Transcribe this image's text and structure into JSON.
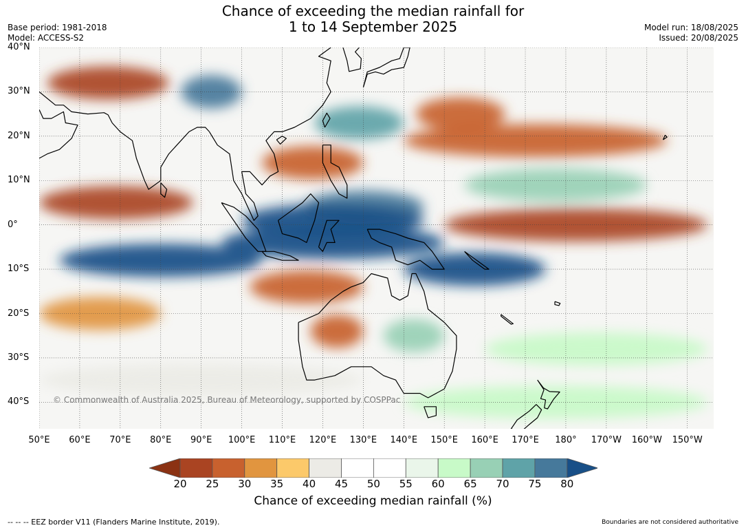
{
  "title": {
    "line1": "Chance of exceeding the median rainfall for",
    "line2": "1 to 14 September 2025"
  },
  "meta": {
    "base_period": "Base period: 1981-2018",
    "model": "Model: ACCESS-S2",
    "model_run": "Model run: 18/08/2025",
    "issued": "Issued: 20/08/2025"
  },
  "map": {
    "lat_labels": [
      "40°N",
      "30°N",
      "20°N",
      "10°N",
      "0°",
      "10°S",
      "20°S",
      "30°S",
      "40°S"
    ],
    "lon_labels": [
      "50°E",
      "60°E",
      "70°E",
      "80°E",
      "90°E",
      "100°E",
      "110°E",
      "120°E",
      "130°E",
      "140°E",
      "150°E",
      "160°E",
      "170°E",
      "180°",
      "170°W",
      "160°W",
      "150°W"
    ],
    "copyright": "© Commonwealth of Australia 2025, Bureau of Meteorology, supported by COSPPac",
    "bands": [
      {
        "lat": 32,
        "lon_from": 52,
        "lon_to": 82,
        "value": 22
      },
      {
        "lat": 30,
        "lon_from": 85,
        "lon_to": 100,
        "value": 78
      },
      {
        "lat": 25,
        "lon_from": 143,
        "lon_to": 165,
        "value": 25
      },
      {
        "lat": 23,
        "lon_from": 118,
        "lon_to": 140,
        "value": 72
      },
      {
        "lat": 19,
        "lon_from": 140,
        "lon_to": 205,
        "value": 25
      },
      {
        "lat": 14,
        "lon_from": 105,
        "lon_to": 130,
        "value": 25
      },
      {
        "lat": 9,
        "lon_from": 155,
        "lon_to": 200,
        "value": 65
      },
      {
        "lat": 5,
        "lon_from": 50,
        "lon_to": 88,
        "value": 22
      },
      {
        "lat": 4,
        "lon_from": 115,
        "lon_to": 145,
        "value": 78
      },
      {
        "lat": 1,
        "lon_from": 100,
        "lon_to": 145,
        "value": 80
      },
      {
        "lat": 0,
        "lon_from": 150,
        "lon_to": 215,
        "value": 22
      },
      {
        "lat": -4,
        "lon_from": 95,
        "lon_to": 150,
        "value": 80
      },
      {
        "lat": -8,
        "lon_from": 55,
        "lon_to": 105,
        "value": 80
      },
      {
        "lat": -10,
        "lon_from": 140,
        "lon_to": 175,
        "value": 80
      },
      {
        "lat": -14,
        "lon_from": 102,
        "lon_to": 130,
        "value": 25
      },
      {
        "lat": -20,
        "lon_from": 50,
        "lon_to": 80,
        "value": 32
      },
      {
        "lat": -24,
        "lon_from": 117,
        "lon_to": 130,
        "value": 25
      },
      {
        "lat": -25,
        "lon_from": 135,
        "lon_to": 150,
        "value": 68
      },
      {
        "lat": -28,
        "lon_from": 160,
        "lon_to": 215,
        "value": 60
      },
      {
        "lat": -35,
        "lon_from": 50,
        "lon_to": 130,
        "value": 40
      },
      {
        "lat": -40,
        "lon_from": 140,
        "lon_to": 215,
        "value": 62
      }
    ],
    "coastlines": [
      {
        "name": "australia",
        "points": [
          [
            114,
            -22
          ],
          [
            114,
            -26
          ],
          [
            115,
            -32
          ],
          [
            116,
            -35
          ],
          [
            118,
            -35
          ],
          [
            123,
            -34
          ],
          [
            127,
            -32
          ],
          [
            132,
            -32
          ],
          [
            135,
            -34
          ],
          [
            138,
            -35
          ],
          [
            140,
            -38
          ],
          [
            144,
            -38
          ],
          [
            146,
            -39
          ],
          [
            150,
            -37
          ],
          [
            152,
            -33
          ],
          [
            153,
            -28
          ],
          [
            153,
            -25
          ],
          [
            150,
            -22
          ],
          [
            146,
            -19
          ],
          [
            145,
            -15
          ],
          [
            143,
            -11
          ],
          [
            142,
            -11
          ],
          [
            141,
            -16
          ],
          [
            139,
            -17
          ],
          [
            137,
            -16
          ],
          [
            136,
            -12
          ],
          [
            132,
            -11
          ],
          [
            130,
            -13
          ],
          [
            127,
            -14
          ],
          [
            125,
            -15
          ],
          [
            122,
            -17
          ],
          [
            119,
            -20
          ],
          [
            114,
            -22
          ]
        ]
      },
      {
        "name": "tasmania",
        "points": [
          [
            145,
            -41
          ],
          [
            148,
            -41
          ],
          [
            148,
            -43
          ],
          [
            146,
            -43.5
          ],
          [
            145,
            -41
          ]
        ]
      },
      {
        "name": "new-guinea",
        "points": [
          [
            131,
            -1
          ],
          [
            134,
            -1
          ],
          [
            138,
            -2
          ],
          [
            141,
            -3
          ],
          [
            145,
            -4
          ],
          [
            147,
            -6
          ],
          [
            150,
            -10
          ],
          [
            147,
            -10
          ],
          [
            144,
            -8
          ],
          [
            141,
            -9
          ],
          [
            138,
            -8
          ],
          [
            137,
            -5
          ],
          [
            134,
            -4
          ],
          [
            132,
            -3
          ],
          [
            131,
            -1
          ]
        ]
      },
      {
        "name": "borneo",
        "points": [
          [
            109,
            1
          ],
          [
            110,
            -2
          ],
          [
            114,
            -3
          ],
          [
            116,
            -4
          ],
          [
            118,
            1
          ],
          [
            119,
            5
          ],
          [
            117,
            7
          ],
          [
            115,
            5
          ],
          [
            112,
            3
          ],
          [
            109,
            1
          ]
        ]
      },
      {
        "name": "sumatra",
        "points": [
          [
            95,
            5
          ],
          [
            98,
            4
          ],
          [
            101,
            2
          ],
          [
            104,
            -1
          ],
          [
            106,
            -6
          ],
          [
            104,
            -6
          ],
          [
            101,
            -3
          ],
          [
            98,
            1
          ],
          [
            95,
            5
          ]
        ]
      },
      {
        "name": "java",
        "points": [
          [
            105,
            -6
          ],
          [
            108,
            -6
          ],
          [
            112,
            -7
          ],
          [
            114,
            -8
          ],
          [
            110,
            -8
          ],
          [
            106,
            -7
          ],
          [
            105,
            -6
          ]
        ]
      },
      {
        "name": "sulawesi",
        "points": [
          [
            119,
            -5
          ],
          [
            120,
            -2
          ],
          [
            121,
            1
          ],
          [
            124,
            1
          ],
          [
            122,
            -1
          ],
          [
            123,
            -4
          ],
          [
            121,
            -4
          ],
          [
            120,
            -6
          ],
          [
            119,
            -5
          ]
        ]
      },
      {
        "name": "philippines",
        "points": [
          [
            120,
            18
          ],
          [
            122,
            18
          ],
          [
            122,
            14
          ],
          [
            124,
            13
          ],
          [
            126,
            9
          ],
          [
            126,
            6
          ],
          [
            124,
            7
          ],
          [
            122,
            10
          ],
          [
            120,
            14
          ],
          [
            120,
            18
          ]
        ]
      },
      {
        "name": "india",
        "points": [
          [
            68,
            23
          ],
          [
            70,
            21
          ],
          [
            73,
            19
          ],
          [
            74,
            15
          ],
          [
            76,
            10
          ],
          [
            77,
            8
          ],
          [
            80,
            10
          ],
          [
            80,
            13
          ],
          [
            82,
            16
          ],
          [
            87,
            21
          ],
          [
            89,
            22
          ],
          [
            91,
            22
          ],
          [
            92,
            21
          ]
        ]
      },
      {
        "name": "sri-lanka",
        "points": [
          [
            80,
            9.5
          ],
          [
            81.5,
            8
          ],
          [
            81,
            6.2
          ],
          [
            80,
            7
          ],
          [
            80,
            9.5
          ]
        ]
      },
      {
        "name": "indochina",
        "points": [
          [
            92,
            21
          ],
          [
            94,
            18
          ],
          [
            97,
            16
          ],
          [
            98,
            10
          ],
          [
            100,
            7
          ],
          [
            103,
            1
          ],
          [
            104,
            2
          ],
          [
            103,
            5
          ],
          [
            101,
            7
          ],
          [
            100,
            12
          ],
          [
            102,
            12
          ],
          [
            105,
            9
          ],
          [
            107,
            11
          ],
          [
            109,
            12
          ],
          [
            108,
            16
          ],
          [
            106,
            19
          ],
          [
            108,
            21
          ],
          [
            110,
            21
          ],
          [
            113,
            22
          ],
          [
            117,
            24
          ],
          [
            120,
            27
          ],
          [
            122,
            30
          ],
          [
            121,
            32
          ],
          [
            122,
            37
          ],
          [
            119,
            38
          ],
          [
            122,
            40
          ]
        ]
      },
      {
        "name": "taiwan",
        "points": [
          [
            120.5,
            22
          ],
          [
            121.8,
            24
          ],
          [
            121,
            25.2
          ],
          [
            120,
            23.5
          ],
          [
            120.5,
            22
          ]
        ]
      },
      {
        "name": "hainan",
        "points": [
          [
            108.6,
            19.2
          ],
          [
            110,
            20
          ],
          [
            111,
            19.5
          ],
          [
            109.5,
            18.2
          ],
          [
            108.6,
            19.2
          ]
        ]
      },
      {
        "name": "japan",
        "points": [
          [
            130,
            31
          ],
          [
            131,
            34
          ],
          [
            133,
            34.5
          ],
          [
            135,
            34
          ],
          [
            137,
            35
          ],
          [
            140,
            35.5
          ],
          [
            141,
            38
          ],
          [
            141.5,
            40
          ],
          [
            140,
            40
          ],
          [
            139,
            37.5
          ],
          [
            137,
            37
          ],
          [
            134,
            35.5
          ],
          [
            131,
            34.5
          ],
          [
            130,
            31
          ]
        ]
      },
      {
        "name": "korea",
        "points": [
          [
            125,
            40
          ],
          [
            126,
            37
          ],
          [
            126.5,
            34.6
          ],
          [
            129.3,
            35.2
          ],
          [
            129.5,
            37.5
          ],
          [
            128,
            39
          ],
          [
            129,
            40
          ]
        ]
      },
      {
        "name": "arabia",
        "points": [
          [
            50,
            26
          ],
          [
            51,
            24
          ],
          [
            53,
            24
          ],
          [
            56,
            25.5
          ],
          [
            56.5,
            23
          ],
          [
            59.5,
            22.5
          ],
          [
            58,
            19.5
          ],
          [
            55,
            17
          ],
          [
            52,
            16
          ],
          [
            50,
            15
          ]
        ]
      },
      {
        "name": "persia",
        "points": [
          [
            50,
            30
          ],
          [
            54,
            27
          ],
          [
            56,
            27
          ],
          [
            58,
            25.5
          ],
          [
            62,
            25
          ],
          [
            66,
            25.3
          ],
          [
            67,
            24.8
          ],
          [
            68,
            23
          ]
        ]
      },
      {
        "name": "new-zealand-north",
        "points": [
          [
            173,
            -35
          ],
          [
            174.5,
            -36.8
          ],
          [
            176,
            -37.6
          ],
          [
            178.5,
            -37.7
          ],
          [
            177,
            -39.3
          ],
          [
            175.5,
            -41.5
          ],
          [
            174.7,
            -41.3
          ],
          [
            175,
            -39.5
          ],
          [
            173.8,
            -39.2
          ],
          [
            174.6,
            -37.2
          ],
          [
            173,
            -35
          ]
        ]
      },
      {
        "name": "new-zealand-south",
        "points": [
          [
            172.7,
            -40.5
          ],
          [
            174,
            -41.7
          ],
          [
            173,
            -43.5
          ],
          [
            171,
            -45
          ],
          [
            169,
            -46.6
          ],
          [
            166.5,
            -46
          ],
          [
            168,
            -44
          ],
          [
            171,
            -42
          ],
          [
            172.7,
            -40.5
          ]
        ]
      },
      {
        "name": "new-caledonia",
        "points": [
          [
            164,
            -20.2
          ],
          [
            167,
            -22.3
          ],
          [
            166.5,
            -22.4
          ],
          [
            164,
            -20.6
          ],
          [
            164,
            -20.2
          ]
        ]
      },
      {
        "name": "hawaii",
        "points": [
          [
            204,
            19.2
          ],
          [
            205,
            19.8
          ],
          [
            204.5,
            20.2
          ],
          [
            204,
            19.2
          ]
        ]
      },
      {
        "name": "solomon",
        "points": [
          [
            155,
            -6
          ],
          [
            158,
            -8
          ],
          [
            161,
            -10
          ],
          [
            160,
            -10
          ],
          [
            157,
            -8
          ],
          [
            155,
            -6
          ]
        ]
      },
      {
        "name": "fiji",
        "points": [
          [
            177.3,
            -17.3
          ],
          [
            178.6,
            -17.7
          ],
          [
            178.3,
            -18.2
          ],
          [
            177.3,
            -18
          ],
          [
            177.3,
            -17.3
          ]
        ]
      }
    ]
  },
  "colorbar": {
    "ticks": [
      "20",
      "25",
      "30",
      "35",
      "40",
      "45",
      "50",
      "55",
      "60",
      "65",
      "70",
      "75",
      "80"
    ],
    "colors": [
      "#8b3213",
      "#aa4422",
      "#c8612e",
      "#e1953f",
      "#fcc96a",
      "#ecebe6",
      "#ffffff",
      "#ffffff",
      "#eaf6ea",
      "#c8fac8",
      "#98d0b5",
      "#5fa3a8",
      "#46799b",
      "#184f87"
    ],
    "label": "Chance of exceeding median rainfall (%)"
  },
  "footer": {
    "eez": "--  --  -- EEZ border V11 (Flanders Marine Institute, 2019).",
    "disclaimer": "Boundaries are not considered authoritative"
  }
}
